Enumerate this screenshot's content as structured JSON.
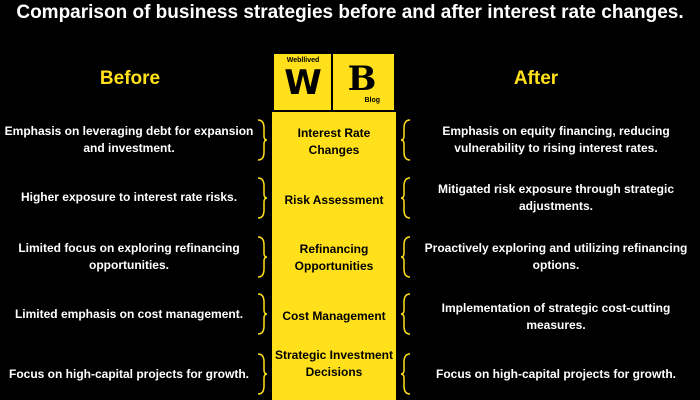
{
  "title": "Comparison of business strategies before and after interest rate changes.",
  "columns": {
    "before": "Before",
    "after": "After"
  },
  "logo": {
    "brand": "Webllived",
    "w": "W",
    "b": "B",
    "blog": "Blog"
  },
  "rows": [
    {
      "before": "Emphasis on leveraging debt for expansion and investment.",
      "category": "Interest Rate Changes",
      "after": "Emphasis on equity financing, reducing vulnerability to rising interest rates."
    },
    {
      "before": "Higher exposure to interest rate risks.",
      "category": "Risk Assessment",
      "after": "Mitigated risk exposure through strategic adjustments."
    },
    {
      "before": "Limited focus on exploring refinancing opportunities.",
      "category": "Refinancing Opportunities",
      "after": "Proactively exploring and utilizing refinancing options."
    },
    {
      "before": "Limited emphasis on cost management.",
      "category": "Cost Management",
      "after": "Implementation of strategic cost-cutting measures."
    },
    {
      "before": "Focus on high-capital projects for growth.",
      "category": "Strategic Investment Decisions",
      "after": "Focus on high-capital projects for growth."
    }
  ],
  "colors": {
    "background": "#000000",
    "accent": "#ffe01b",
    "text": "#ffffff"
  }
}
